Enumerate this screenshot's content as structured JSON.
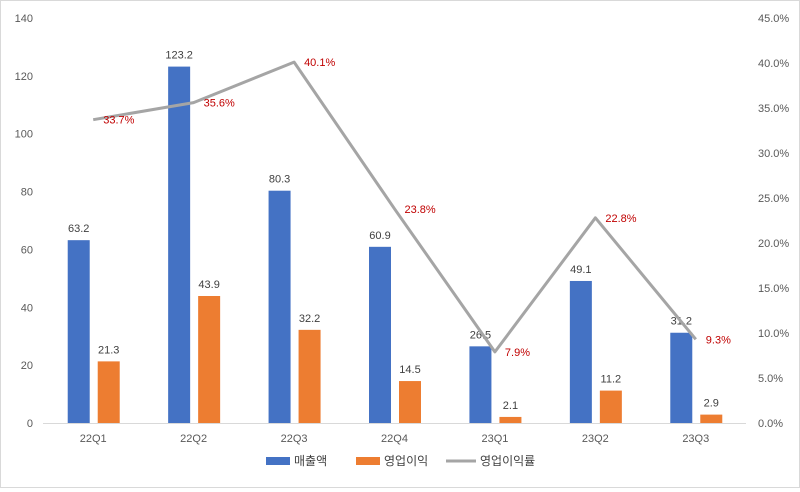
{
  "chart_data": {
    "type": "bar",
    "title": "",
    "xlabel": "",
    "ylabel": "",
    "categories": [
      "22Q1",
      "22Q2",
      "22Q3",
      "22Q4",
      "23Q1",
      "23Q2",
      "23Q3"
    ],
    "series": [
      {
        "name": "매출액",
        "kind": "bar",
        "axis": "left",
        "color": "#4472c4",
        "values": [
          63.2,
          123.2,
          80.3,
          60.9,
          26.5,
          49.1,
          31.2
        ],
        "labels": [
          "63.2",
          "123.2",
          "80.3",
          "60.9",
          "26.5",
          "49.1",
          "31.2"
        ]
      },
      {
        "name": "영업이익",
        "kind": "bar",
        "axis": "left",
        "color": "#ed7d31",
        "values": [
          21.3,
          43.9,
          32.2,
          14.5,
          2.1,
          11.2,
          2.9
        ],
        "labels": [
          "21.3",
          "43.9",
          "32.2",
          "14.5",
          "2.1",
          "11.2",
          "2.9"
        ]
      },
      {
        "name": "영업이익률",
        "kind": "line",
        "axis": "right",
        "color": "#a5a5a5",
        "label_color": "#c00000",
        "values": [
          33.7,
          35.6,
          40.1,
          23.8,
          7.9,
          22.8,
          9.3
        ],
        "labels": [
          "33.7%",
          "35.6%",
          "40.1%",
          "23.8%",
          "7.9%",
          "22.8%",
          "9.3%"
        ]
      }
    ],
    "y_left": {
      "min": 0,
      "max": 140,
      "ticks": [
        "0",
        "20",
        "40",
        "60",
        "80",
        "100",
        "120",
        "140"
      ]
    },
    "y_right": {
      "min": 0,
      "max": 45,
      "ticks": [
        "0.0%",
        "5.0%",
        "10.0%",
        "15.0%",
        "20.0%",
        "25.0%",
        "30.0%",
        "35.0%",
        "40.0%",
        "45.0%"
      ]
    },
    "grid": false,
    "legend_position": "bottom"
  }
}
